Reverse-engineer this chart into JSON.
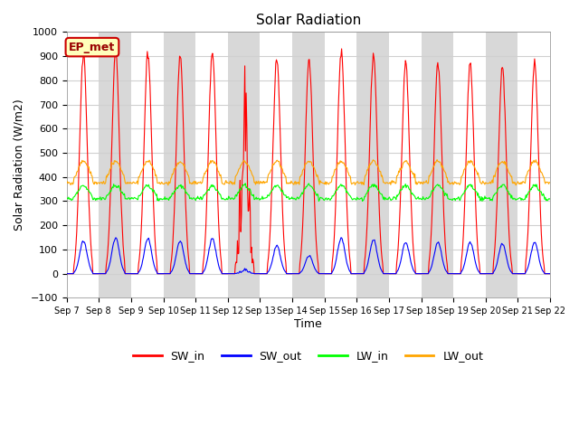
{
  "title": "Solar Radiation",
  "xlabel": "Time",
  "ylabel": "Solar Radiation (W/m2)",
  "ylim": [
    -100,
    1000
  ],
  "yticks": [
    -100,
    0,
    100,
    200,
    300,
    400,
    500,
    600,
    700,
    800,
    900,
    1000
  ],
  "num_days": 15,
  "start_day": 7,
  "colors": {
    "SW_in": "#ff0000",
    "SW_out": "#0000ff",
    "LW_in": "#00ff00",
    "LW_out": "#ffa500"
  },
  "fig_bg": "#ffffff",
  "plot_bg": "#ffffff",
  "band_color": "#d8d8d8",
  "grid_color": "#d0d0d0",
  "annotation_text": "EP_met",
  "annotation_bg": "#ffffbb",
  "annotation_border": "#cc0000"
}
